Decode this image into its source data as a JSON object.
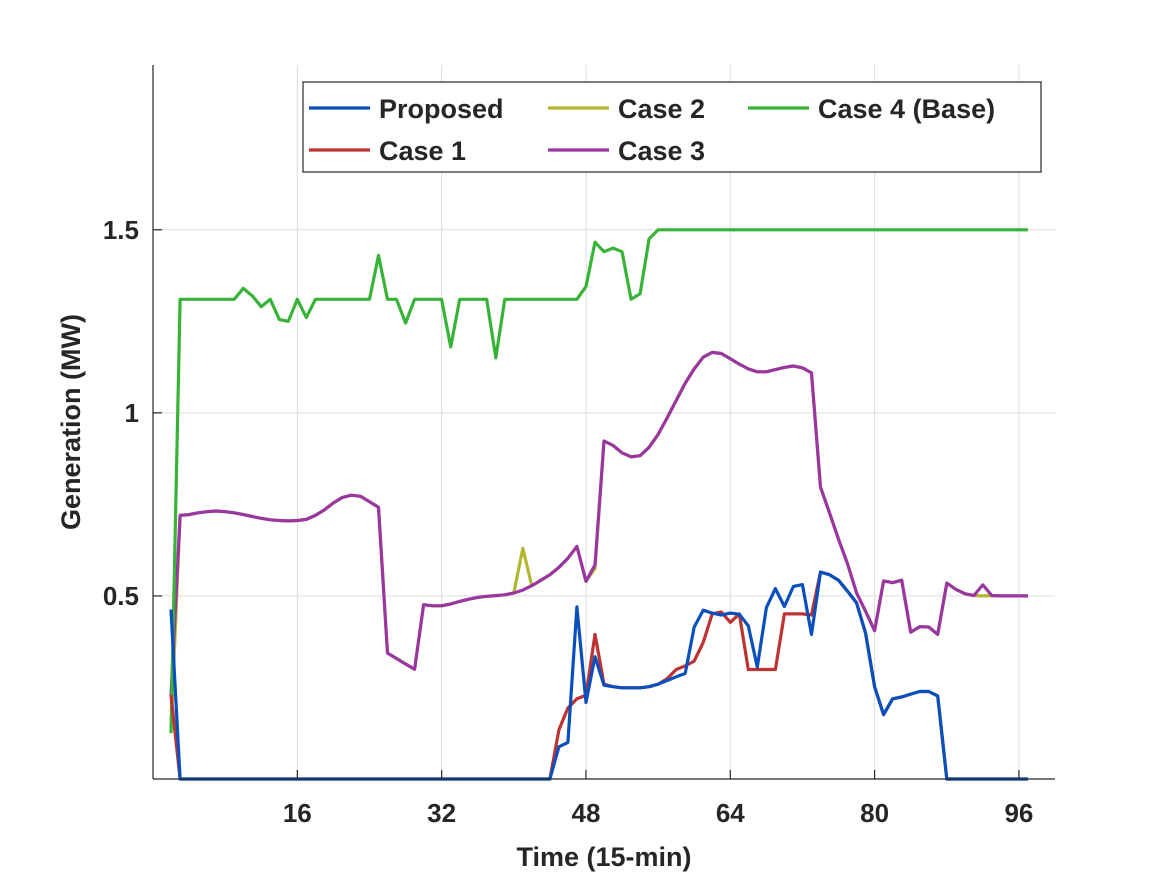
{
  "chart_data": {
    "type": "line",
    "title": "",
    "xlabel": "Time (15-min)",
    "ylabel": "Generation (MW)",
    "xlim": [
      0,
      100
    ],
    "ylim": [
      0,
      1.95
    ],
    "xticks": [
      16,
      32,
      48,
      64,
      80,
      96
    ],
    "xtick_labels": [
      "16",
      "32",
      "48",
      "64",
      "80",
      "96"
    ],
    "yticks": [
      0.5,
      1,
      1.5
    ],
    "ytick_labels": [
      "0.5",
      "1",
      "1.5"
    ],
    "grid": true,
    "legend_position": "top-right",
    "x_start": 2,
    "series": [
      {
        "name": "Case 2",
        "color": "#b3b632",
        "values": [
          0.13,
          0.72,
          0.722,
          0.727,
          0.73,
          0.732,
          0.73,
          0.727,
          0.722,
          0.717,
          0.712,
          0.708,
          0.706,
          0.705,
          0.706,
          0.709,
          0.72,
          0.735,
          0.754,
          0.769,
          0.775,
          0.772,
          0.757,
          0.742,
          0.344,
          0.329,
          0.314,
          0.3,
          0.476,
          0.473,
          0.473,
          0.478,
          0.485,
          0.491,
          0.496,
          0.499,
          0.501,
          0.503,
          0.508,
          0.63,
          0.528,
          0.543,
          0.558,
          0.578,
          0.603,
          0.635,
          0.54,
          0.575,
          0.923,
          0.911,
          0.891,
          0.88,
          0.883,
          0.906,
          0.941,
          0.986,
          1.034,
          1.081,
          1.12,
          1.152,
          1.165,
          1.162,
          1.148,
          1.133,
          1.12,
          1.112,
          1.112,
          1.118,
          1.124,
          1.128,
          1.123,
          1.109,
          0.797,
          0.727,
          0.655,
          0.588,
          0.508,
          0.458,
          0.405,
          0.541,
          0.536,
          0.543,
          0.401,
          0.416,
          0.415,
          0.395,
          0.535,
          0.518,
          0.506,
          0.501,
          0.5,
          0.501,
          0.5,
          0.5,
          0.5,
          0.5
        ]
      },
      {
        "name": "Case 3",
        "color": "#9a36a2",
        "values": [
          0.23,
          0.72,
          0.722,
          0.727,
          0.73,
          0.732,
          0.73,
          0.727,
          0.722,
          0.717,
          0.712,
          0.708,
          0.706,
          0.705,
          0.706,
          0.709,
          0.72,
          0.735,
          0.754,
          0.769,
          0.775,
          0.772,
          0.757,
          0.742,
          0.344,
          0.329,
          0.314,
          0.3,
          0.476,
          0.473,
          0.473,
          0.478,
          0.485,
          0.491,
          0.496,
          0.499,
          0.501,
          0.503,
          0.508,
          0.516,
          0.528,
          0.543,
          0.558,
          0.578,
          0.603,
          0.635,
          0.54,
          0.585,
          0.923,
          0.911,
          0.891,
          0.88,
          0.883,
          0.906,
          0.941,
          0.986,
          1.034,
          1.081,
          1.12,
          1.152,
          1.165,
          1.162,
          1.148,
          1.133,
          1.12,
          1.112,
          1.112,
          1.118,
          1.124,
          1.128,
          1.123,
          1.109,
          0.797,
          0.727,
          0.655,
          0.588,
          0.508,
          0.458,
          0.405,
          0.541,
          0.536,
          0.543,
          0.401,
          0.416,
          0.415,
          0.395,
          0.535,
          0.518,
          0.506,
          0.501,
          0.53,
          0.501,
          0.5,
          0.5,
          0.5,
          0.5
        ]
      },
      {
        "name": "Case 4 (Base)",
        "color": "#37b337",
        "values": [
          0.125,
          1.31,
          1.31,
          1.31,
          1.31,
          1.31,
          1.31,
          1.31,
          1.34,
          1.32,
          1.29,
          1.31,
          1.255,
          1.25,
          1.31,
          1.26,
          1.31,
          1.31,
          1.31,
          1.31,
          1.31,
          1.31,
          1.31,
          1.43,
          1.31,
          1.31,
          1.245,
          1.31,
          1.31,
          1.31,
          1.31,
          1.18,
          1.31,
          1.31,
          1.31,
          1.31,
          1.15,
          1.31,
          1.31,
          1.31,
          1.31,
          1.31,
          1.31,
          1.31,
          1.31,
          1.31,
          1.345,
          1.466,
          1.44,
          1.45,
          1.44,
          1.31,
          1.325,
          1.475,
          1.5,
          1.5,
          1.5,
          1.5,
          1.5,
          1.5,
          1.5,
          1.5,
          1.5,
          1.5,
          1.5,
          1.5,
          1.5,
          1.5,
          1.5,
          1.5,
          1.5,
          1.5,
          1.5,
          1.5,
          1.5,
          1.5,
          1.5,
          1.5,
          1.5,
          1.5,
          1.5,
          1.5,
          1.5,
          1.5,
          1.5,
          1.5,
          1.5,
          1.5,
          1.5,
          1.5,
          1.5,
          1.5,
          1.5,
          1.5,
          1.5,
          1.5
        ]
      },
      {
        "name": "Case 1",
        "color": "#bd3232",
        "values": [
          0.23,
          0,
          0,
          0,
          0,
          0,
          0,
          0,
          0,
          0,
          0,
          0,
          0,
          0,
          0,
          0,
          0,
          0,
          0,
          0,
          0,
          0,
          0,
          0,
          0,
          0,
          0,
          0,
          0,
          0,
          0,
          0,
          0,
          0,
          0,
          0,
          0,
          0,
          0,
          0,
          0,
          0,
          0,
          0.134,
          0.194,
          0.219,
          0.229,
          0.395,
          0.259,
          0.252,
          0.249,
          0.249,
          0.249,
          0.252,
          0.259,
          0.274,
          0.299,
          0.309,
          0.322,
          0.373,
          0.451,
          0.456,
          0.428,
          0.451,
          0.299,
          0.299,
          0.299,
          0.299,
          0.451,
          0.451,
          0.451,
          0.448,
          0.565,
          0.558,
          0.543,
          0.513,
          0.481,
          0.398,
          0.252,
          0.176,
          0.219,
          0.224,
          0.232,
          0.239,
          0.239,
          0.227,
          0,
          0,
          0,
          0,
          0,
          0,
          0,
          0,
          0,
          0
        ]
      },
      {
        "name": "Proposed",
        "color": "#0a50bd",
        "values": [
          0.463,
          0,
          0,
          0,
          0,
          0,
          0,
          0,
          0,
          0,
          0,
          0,
          0,
          0,
          0,
          0,
          0,
          0,
          0,
          0,
          0,
          0,
          0,
          0,
          0,
          0,
          0,
          0,
          0,
          0,
          0,
          0,
          0,
          0,
          0,
          0,
          0,
          0,
          0,
          0,
          0,
          0,
          0,
          0.088,
          0.1,
          0.47,
          0.209,
          0.334,
          0.256,
          0.252,
          0.249,
          0.249,
          0.249,
          0.252,
          0.259,
          0.269,
          0.279,
          0.288,
          0.415,
          0.461,
          0.453,
          0.448,
          0.453,
          0.45,
          0.418,
          0.306,
          0.468,
          0.52,
          0.471,
          0.526,
          0.531,
          0.395,
          0.565,
          0.558,
          0.543,
          0.513,
          0.481,
          0.398,
          0.252,
          0.176,
          0.219,
          0.224,
          0.232,
          0.239,
          0.239,
          0.227,
          0,
          0,
          0,
          0,
          0,
          0,
          0,
          0,
          0,
          0
        ]
      }
    ],
    "legend": [
      {
        "label": "Proposed",
        "color": "#0a50bd"
      },
      {
        "label": "Case 2",
        "color": "#b3b632"
      },
      {
        "label": "Case 4 (Base)",
        "color": "#37b337"
      },
      {
        "label": "Case 1",
        "color": "#bd3232"
      },
      {
        "label": "Case 3",
        "color": "#9a36a2"
      }
    ]
  }
}
